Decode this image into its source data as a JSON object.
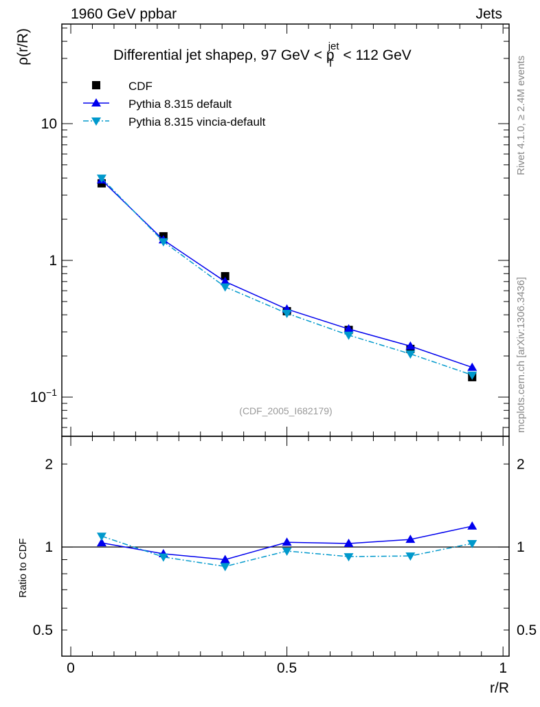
{
  "header": {
    "left": "1960 GeV ppbar",
    "right": "Jets"
  },
  "side_text": {
    "rivet": "Rivet 4.1.0, ≥ 2.4M events",
    "mcplots": "mcplots.cern.ch [arXiv:1306.3436]"
  },
  "watermark": "(CDF_2005_I682179)",
  "chart_data": [
    {
      "type": "line",
      "title": "Differential jet shapeρ, 97 GeV < p",
      "title_sup": "jet",
      "title_sub": "T",
      "title_tail": " < 112 GeV",
      "ylabel": "ρ(r/R)",
      "yscale": "log",
      "ylim": [
        0.0517,
        53.5
      ],
      "xlim": [
        -0.0207,
        1.014
      ],
      "ytick_labels": [
        {
          "v": 10,
          "t": "10"
        },
        {
          "v": 1,
          "t": "1"
        },
        {
          "v": 0.1,
          "t": "10",
          "sup": "−1"
        }
      ],
      "x": [
        0.0714,
        0.2143,
        0.3571,
        0.5,
        0.6429,
        0.7857,
        0.9286
      ],
      "series": [
        {
          "name": "CDF",
          "marker": "square",
          "color": "#000000",
          "line": "none",
          "values": [
            3.66,
            1.5,
            0.766,
            0.425,
            0.31,
            0.225,
            0.14
          ]
        },
        {
          "name": "Pythia 8.315 default",
          "marker": "triangle-up",
          "color": "#0000ee",
          "line": "solid",
          "values": [
            3.87,
            1.41,
            0.7,
            0.44,
            0.315,
            0.236,
            0.165
          ]
        },
        {
          "name": "Pythia 8.315 vincia-default",
          "marker": "triangle-down",
          "color": "#0099cc",
          "line": "dashdot",
          "values": [
            4.0,
            1.37,
            0.64,
            0.41,
            0.284,
            0.207,
            0.145
          ]
        }
      ],
      "legend": "top-left"
    },
    {
      "type": "line",
      "ylabel": "Ratio to CDF",
      "xlabel": "r/R",
      "yscale": "log",
      "ylim": [
        0.402,
        2.52
      ],
      "xlim": [
        -0.0207,
        1.014
      ],
      "ytick_labels": [
        {
          "v": 2,
          "t": "2"
        },
        {
          "v": 1,
          "t": "1"
        },
        {
          "v": 0.5,
          "t": "0.5"
        }
      ],
      "xtick_labels": [
        {
          "v": 0,
          "t": "0"
        },
        {
          "v": 0.5,
          "t": "0.5"
        },
        {
          "v": 1,
          "t": "1"
        }
      ],
      "x": [
        0.0714,
        0.2143,
        0.3571,
        0.5,
        0.6429,
        0.7857,
        0.9286
      ],
      "series": [
        {
          "name": "Pythia 8.315 default",
          "marker": "triangle-up",
          "color": "#0000ee",
          "line": "solid",
          "values": [
            1.035,
            0.945,
            0.9,
            1.04,
            1.03,
            1.065,
            1.19
          ]
        },
        {
          "name": "Pythia 8.315 vincia-default",
          "marker": "triangle-down",
          "color": "#0099cc",
          "line": "dashdot",
          "values": [
            1.095,
            0.92,
            0.85,
            0.967,
            0.923,
            0.928,
            1.03
          ]
        }
      ]
    }
  ]
}
